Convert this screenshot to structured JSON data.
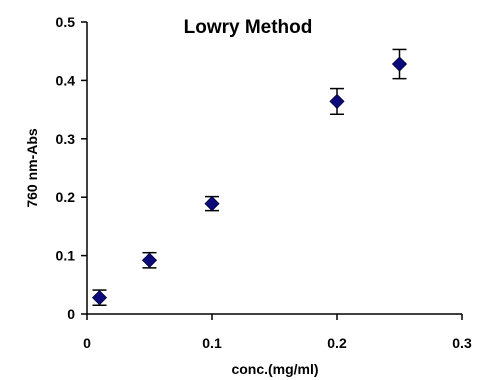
{
  "chart_data": {
    "type": "scatter",
    "title": "Lowry Method",
    "xlabel": "conc.(mg/ml)",
    "ylabel": "760 nm-Abs",
    "xlim": [
      0,
      0.3
    ],
    "ylim": [
      0,
      0.5
    ],
    "x_ticks": [
      0,
      0.1,
      0.2,
      0.3
    ],
    "y_ticks": [
      0,
      0.1,
      0.2,
      0.3,
      0.4,
      0.5
    ],
    "x_tick_labels": [
      "0",
      "0.1",
      "0.2",
      "0.3"
    ],
    "y_tick_labels": [
      "0",
      "0.1",
      "0.2",
      "0.3",
      "0.4",
      "0.5"
    ],
    "grid": false,
    "marker": "diamond",
    "marker_color": "#0a0a7a",
    "series": [
      {
        "x": [
          0.01,
          0.05,
          0.1,
          0.2,
          0.25
        ],
        "y": [
          0.028,
          0.092,
          0.189,
          0.364,
          0.428
        ],
        "error": [
          0.013,
          0.013,
          0.012,
          0.022,
          0.025
        ]
      }
    ]
  }
}
